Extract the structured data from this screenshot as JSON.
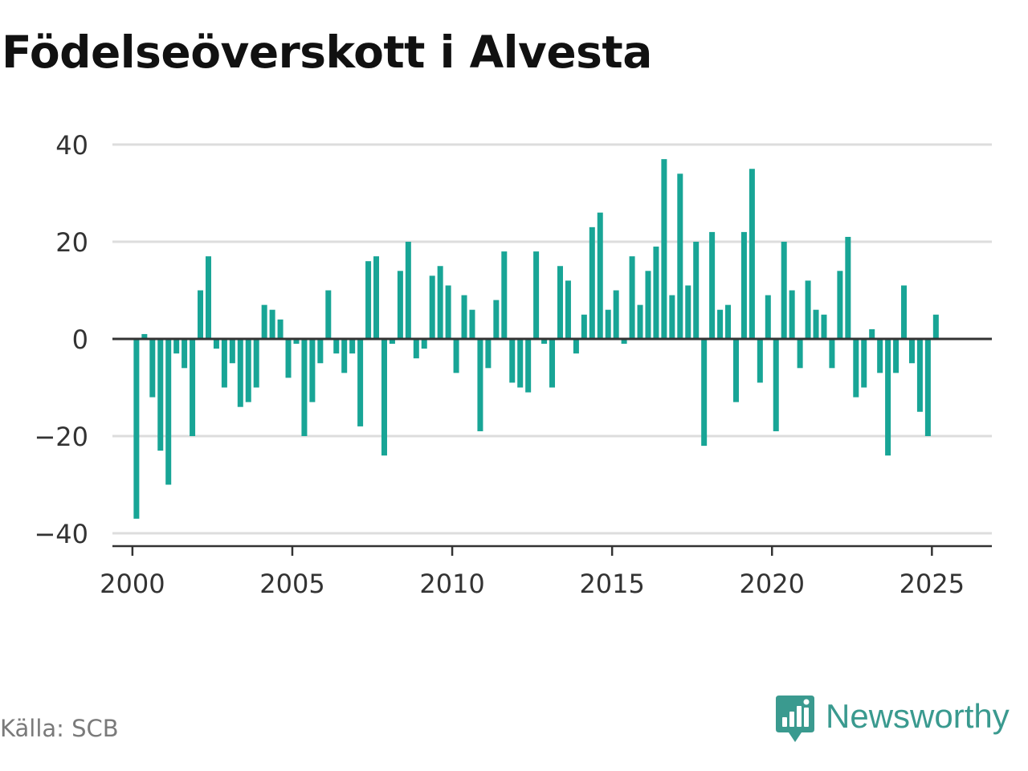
{
  "title": "Födelseöverskott i Alvesta",
  "source": "Källa: SCB",
  "brand": {
    "name": "Newsworthy",
    "icon": "newsworthy-logo-icon",
    "color": "#3a9a8f"
  },
  "colors": {
    "bar": "#18a596",
    "grid": "#dddddd",
    "zero_line": "#333333",
    "axis": "#333333"
  },
  "chart_data": {
    "type": "bar",
    "title": "Födelseöverskott i Alvesta",
    "xlabel": "",
    "ylabel": "",
    "x_ticks": [
      "2000",
      "2005",
      "2010",
      "2015",
      "2020",
      "2025"
    ],
    "y_ticks": [
      "40",
      "20",
      "0",
      "−20",
      "−40"
    ],
    "y_tick_values": [
      40,
      20,
      0,
      -20,
      -40
    ],
    "ylim": [
      -42,
      42
    ],
    "xlim": [
      1999.375,
      2026.875
    ],
    "grid": true,
    "legend": "none",
    "x_start_period": "2000 Q1",
    "x_period": "quarter",
    "values": [
      -37,
      1,
      -12,
      -23,
      -30,
      -3,
      -6,
      -20,
      10,
      17,
      -2,
      -10,
      -5,
      -14,
      -13,
      -10,
      7,
      6,
      4,
      -8,
      -1,
      -20,
      -13,
      -5,
      10,
      -3,
      -7,
      -3,
      -18,
      16,
      17,
      -24,
      -1,
      14,
      20,
      -4,
      -2,
      13,
      15,
      11,
      -7,
      9,
      6,
      -19,
      -6,
      8,
      18,
      -9,
      -10,
      -11,
      18,
      -1,
      -10,
      15,
      12,
      -3,
      5,
      23,
      26,
      6,
      10,
      -1,
      17,
      7,
      14,
      19,
      37,
      9,
      34,
      11,
      20,
      -22,
      22,
      6,
      7,
      -13,
      22,
      35,
      -9,
      9,
      -19,
      20,
      10,
      -6,
      12,
      6,
      5,
      -6,
      14,
      21,
      -12,
      -10,
      2,
      -7,
      -24,
      -7,
      11,
      -5,
      -15,
      -20,
      5
    ]
  }
}
